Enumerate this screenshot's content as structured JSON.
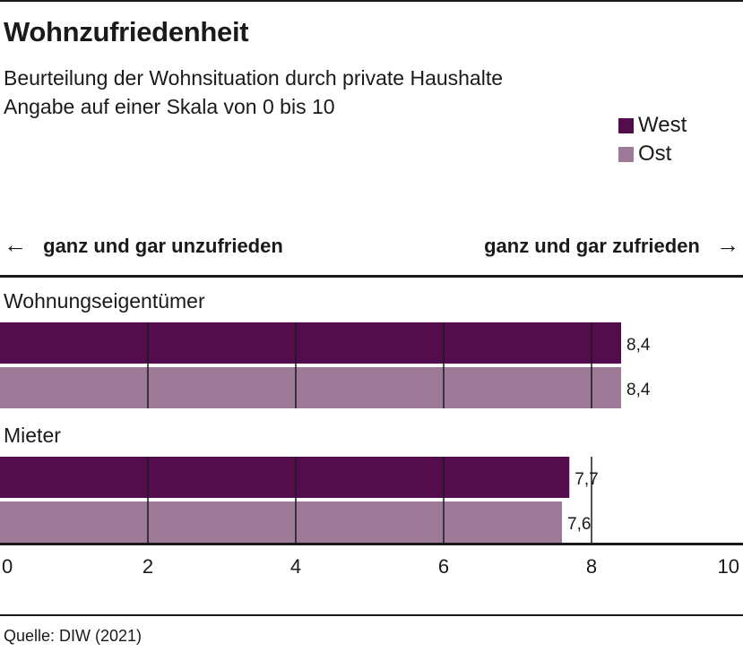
{
  "title": "Wohnzufriedenheit",
  "subtitle_lines": [
    "Beurteilung der Wohnsituation durch private Haushalte",
    "Angabe auf einer Skala von 0 bis 10"
  ],
  "direction": {
    "left_arrow": "←",
    "left": "ganz und gar unzufrieden",
    "right": "ganz und gar zufrieden",
    "right_arrow": "→"
  },
  "source": "Quelle: DIW (2021)",
  "colors": {
    "west": "#540d4c",
    "ost": "#9c7a98",
    "text": "#1a1a1a"
  },
  "chart_data": {
    "type": "bar",
    "orientation": "horizontal",
    "title": "Wohnzufriedenheit",
    "groups": [
      "Wohnungseigentümer",
      "Mieter"
    ],
    "series": [
      {
        "name": "West",
        "values": [
          8.4,
          7.7
        ],
        "labels": [
          "8,4",
          "7,7"
        ]
      },
      {
        "name": "Ost",
        "values": [
          8.4,
          7.6
        ],
        "labels": [
          "8,4",
          "7,6"
        ]
      }
    ],
    "xlim": [
      0,
      10
    ],
    "xticks": [
      0,
      2,
      4,
      6,
      8,
      10
    ],
    "xtick_labels": [
      "0",
      "2",
      "4",
      "6",
      "8",
      "10"
    ],
    "grid": true,
    "legend_position": "top-right"
  }
}
